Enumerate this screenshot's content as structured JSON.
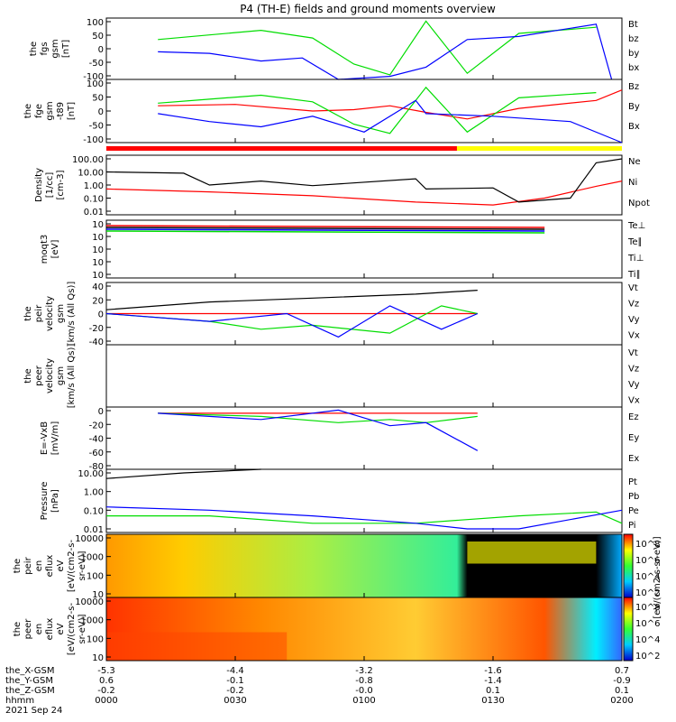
{
  "title": "P4 (TH-E) fields and ground moments overview",
  "colors": {
    "black": "#000000",
    "red": "#ff0000",
    "green": "#00dd00",
    "blue": "#0000ff",
    "yellow": "#ffff00"
  },
  "chart_data": [
    {
      "type": "line",
      "id": "fgs",
      "ylabel": [
        "the",
        "fgs",
        "gsm",
        "[nT]"
      ],
      "ylim": [
        -100,
        100
      ],
      "ticks": [
        "100",
        "50",
        "0",
        "-50",
        "-100"
      ],
      "series": [
        {
          "name": "Bt",
          "color": "#000000"
        },
        {
          "name": "bz",
          "color": "#ff0000"
        },
        {
          "name": "by",
          "color": "#00dd00",
          "x": [
            10,
            20,
            30,
            40,
            48,
            55,
            62,
            70,
            80,
            95
          ],
          "y": [
            30,
            45,
            60,
            35,
            -50,
            -85,
            90,
            -80,
            50,
            70
          ]
        },
        {
          "name": "bx",
          "color": "#0000ff",
          "x": [
            10,
            20,
            30,
            38,
            45,
            55,
            62,
            70,
            80,
            95,
            98
          ],
          "y": [
            -10,
            -15,
            -40,
            -30,
            -100,
            -90,
            -60,
            30,
            40,
            80,
            -100
          ]
        }
      ]
    },
    {
      "type": "line",
      "id": "fge",
      "ylabel": [
        "the",
        "fge",
        "gsm",
        "-t89",
        "[nT]"
      ],
      "ylim": [
        -120,
        120
      ],
      "ticks": [
        "100",
        "50",
        "0",
        "-50",
        "-100"
      ],
      "series": [
        {
          "name": "Bz",
          "color": "#ff0000",
          "x": [
            10,
            25,
            40,
            48,
            55,
            62,
            70,
            80,
            95,
            100
          ],
          "y": [
            20,
            25,
            0,
            5,
            20,
            -5,
            -30,
            10,
            40,
            80
          ]
        },
        {
          "name": "By",
          "color": "#00dd00",
          "x": [
            10,
            20,
            30,
            40,
            48,
            55,
            62,
            70,
            80,
            95
          ],
          "y": [
            30,
            45,
            60,
            35,
            -50,
            -85,
            90,
            -80,
            50,
            70
          ]
        },
        {
          "name": "Bx",
          "color": "#0000ff",
          "x": [
            10,
            20,
            30,
            40,
            50,
            60,
            62,
            75,
            90,
            100
          ],
          "y": [
            -10,
            -40,
            -60,
            -20,
            -80,
            40,
            -10,
            -20,
            -40,
            -120
          ]
        }
      ]
    },
    {
      "type": "line",
      "id": "density",
      "ylabel": [
        "Density",
        "[1/cc]",
        "[cm-3]"
      ],
      "ticks": [
        "100.00",
        "10.00",
        "1.00",
        "0.10",
        "0.01"
      ],
      "series": [
        {
          "name": "Ne",
          "color": "#ff0000",
          "x": [
            0,
            20,
            40,
            60,
            75,
            85,
            95,
            100
          ],
          "y": [
            0.5,
            0.3,
            0.15,
            0.05,
            0.03,
            0.1,
            0.8,
            2
          ]
        },
        {
          "name": "Ni",
          "color": "#000000",
          "x": [
            0,
            15,
            20,
            30,
            40,
            60,
            62,
            75,
            80,
            90,
            95,
            100
          ],
          "y": [
            10,
            8,
            1,
            2,
            0.9,
            3,
            0.5,
            0.6,
            0.05,
            0.1,
            50,
            100
          ]
        },
        {
          "name": "Npot",
          "color": "#0000ff"
        }
      ]
    },
    {
      "type": "line",
      "id": "moms",
      "ylabel": [
        "moqt3",
        "[eV]"
      ],
      "ticks": [
        "10",
        "10",
        "10",
        "10",
        "10"
      ],
      "series": [
        {
          "name": "Te⊥",
          "color": "#ff0000"
        },
        {
          "name": "Te∥",
          "color": "#000000"
        },
        {
          "name": "Ti⊥",
          "color": "#0000ff"
        },
        {
          "name": "Ti∥",
          "color": "#00dd00"
        }
      ]
    },
    {
      "type": "line",
      "id": "peir_vel",
      "ylabel": [
        "the",
        "peir",
        "velocity",
        "gsm",
        "[km/s (All Qs)]"
      ],
      "ylim": [
        -40,
        40
      ],
      "ticks": [
        "40",
        "20",
        "0",
        "-20",
        "-40"
      ],
      "series": [
        {
          "name": "Vt",
          "color": "#000000",
          "x": [
            0,
            20,
            40,
            60,
            72
          ],
          "y": [
            5,
            15,
            20,
            25,
            30
          ]
        },
        {
          "name": "Vz",
          "color": "#ff0000",
          "x": [
            0,
            20,
            40,
            60,
            72
          ],
          "y": [
            0,
            0,
            0,
            0,
            0
          ]
        },
        {
          "name": "Vy",
          "color": "#00dd00",
          "x": [
            0,
            20,
            30,
            40,
            55,
            65,
            72
          ],
          "y": [
            0,
            -10,
            -20,
            -15,
            -25,
            10,
            0
          ]
        },
        {
          "name": "Vx",
          "color": "#0000ff",
          "x": [
            0,
            20,
            35,
            45,
            55,
            65,
            72
          ],
          "y": [
            0,
            -10,
            0,
            -30,
            10,
            -20,
            0
          ]
        }
      ]
    },
    {
      "type": "line",
      "id": "peer_vel",
      "ylabel": [
        "the",
        "peer",
        "velocity",
        "gsm",
        "[km/s (All Qs)]"
      ],
      "series": [
        {
          "name": "Vt",
          "color": "#000000"
        },
        {
          "name": "Vz",
          "color": "#ff0000"
        },
        {
          "name": "Vy",
          "color": "#00dd00"
        },
        {
          "name": "Vx",
          "color": "#0000ff"
        }
      ]
    },
    {
      "type": "line",
      "id": "efield",
      "ylabel": [
        "E=-VxB",
        "[mV/m]"
      ],
      "ylim": [
        -90,
        10
      ],
      "ticks": [
        "0",
        "-20",
        "-40",
        "-60",
        "-80"
      ],
      "series": [
        {
          "name": "Ez",
          "color": "#ff0000",
          "x": [
            10,
            40,
            60,
            72
          ],
          "y": [
            0,
            0,
            0,
            0
          ]
        },
        {
          "name": "Ey",
          "color": "#00dd00",
          "x": [
            10,
            30,
            45,
            55,
            62,
            72
          ],
          "y": [
            0,
            -5,
            -15,
            -10,
            -15,
            -5
          ]
        },
        {
          "name": "Ex",
          "color": "#0000ff",
          "x": [
            10,
            30,
            45,
            55,
            62,
            72
          ],
          "y": [
            0,
            -10,
            5,
            -20,
            -15,
            -60
          ]
        }
      ]
    },
    {
      "type": "line",
      "id": "pressure",
      "ylabel": [
        "Pressure",
        "[nPa]"
      ],
      "ticks": [
        "10.00",
        "1.00",
        "0.10",
        "0.01"
      ],
      "series": [
        {
          "name": "Pt",
          "color": "#000000",
          "x": [
            0,
            15,
            30
          ],
          "y": [
            5,
            10,
            20
          ]
        },
        {
          "name": "Pb",
          "color": "#ff0000"
        },
        {
          "name": "Pe",
          "color": "#00dd00",
          "x": [
            0,
            20,
            40,
            60,
            80,
            95,
            100
          ],
          "y": [
            0.05,
            0.05,
            0.02,
            0.02,
            0.05,
            0.08,
            0.02
          ]
        },
        {
          "name": "Pi",
          "color": "#0000ff",
          "x": [
            0,
            20,
            40,
            60,
            70,
            80,
            100
          ],
          "y": [
            0.15,
            0.1,
            0.05,
            0.02,
            0.01,
            0.01,
            0.1
          ]
        }
      ]
    },
    {
      "type": "heatmap",
      "id": "peir_eflux",
      "ylabel": [
        "the",
        "peir",
        "en",
        "eflux",
        "eV",
        "[eV/(cm2-s-",
        "sr-eV)]"
      ],
      "ticks": [
        "10000",
        "1000",
        "100",
        "10"
      ],
      "colorbar": [
        "10^8",
        "10^6",
        "10^4",
        "10^2"
      ]
    },
    {
      "type": "heatmap",
      "id": "peer_eflux",
      "ylabel": [
        "the",
        "peer",
        "en",
        "eflux",
        "eV",
        "[eV/(cm2-s-",
        "sr-eV)]"
      ],
      "ticks": [
        "10000",
        "1000",
        "100",
        "10"
      ],
      "colorbar": [
        "10^8",
        "10^6",
        "10^4",
        "10^2"
      ],
      "colorbar_label": "[eV/(cm2-s-sr-eV)]"
    }
  ],
  "xaxis": {
    "rows": [
      {
        "label": "the_X-GSM",
        "values": [
          "-5.3",
          "-4.4",
          "-3.2",
          "-1.6",
          "0.7"
        ]
      },
      {
        "label": "the_Y-GSM",
        "values": [
          "0.6",
          "-0.1",
          "-0.8",
          "-1.4",
          "-0.9"
        ]
      },
      {
        "label": "the_Z-GSM",
        "values": [
          "-0.2",
          "-0.2",
          "-0.0",
          "0.1",
          "0.1"
        ]
      },
      {
        "label": "hhmm",
        "values": [
          "0000",
          "0030",
          "0100",
          "0130",
          "0200"
        ]
      }
    ],
    "date": "2021 Sep 24"
  }
}
